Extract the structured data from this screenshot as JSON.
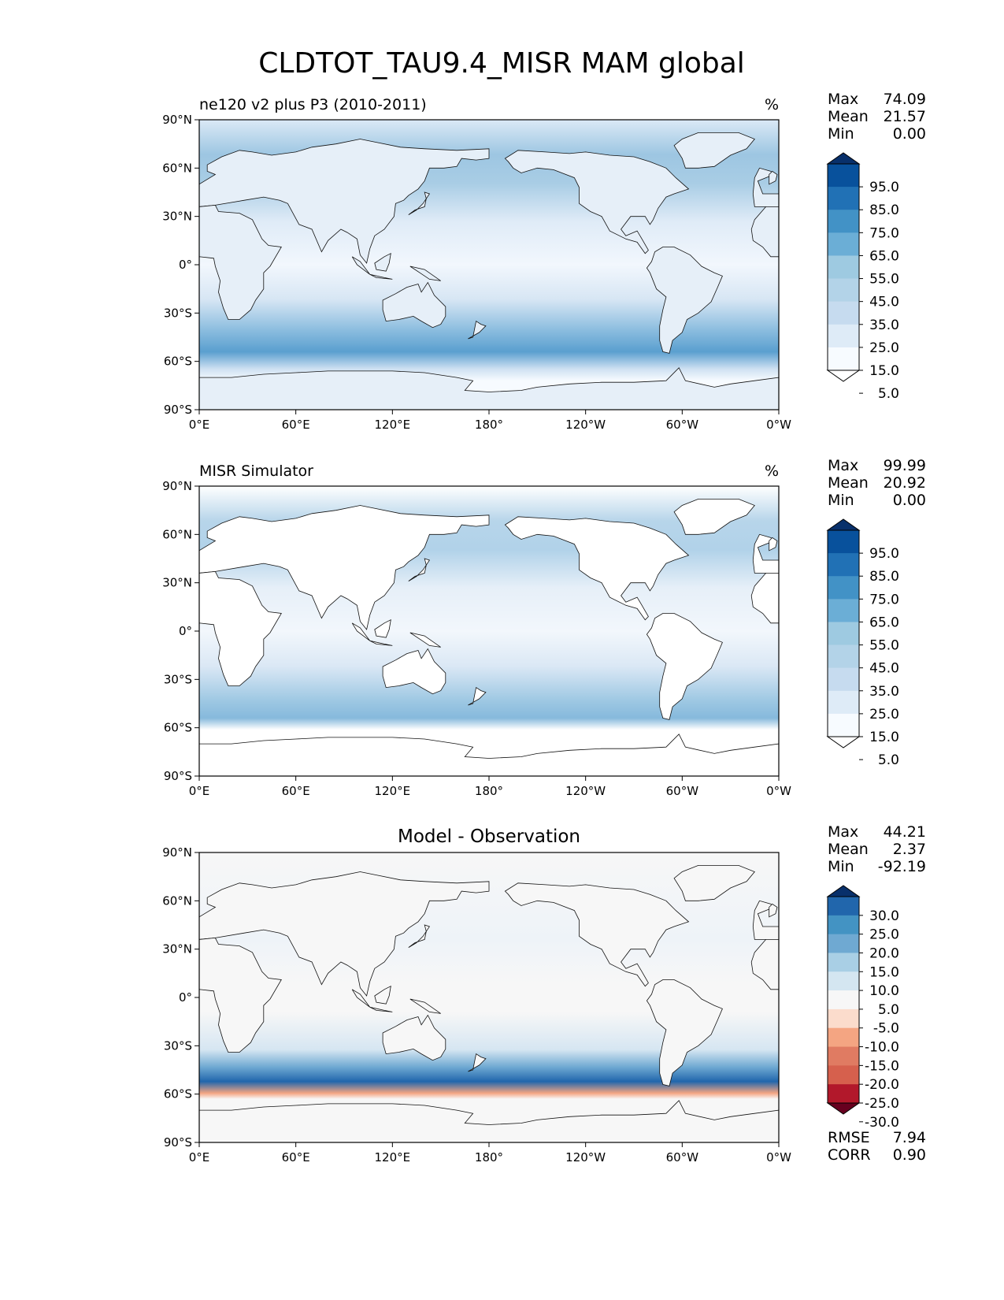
{
  "figure": {
    "title": "CLDTOT_TAU9.4_MISR MAM global"
  },
  "axes": {
    "lat_ticks": [
      "90°N",
      "60°N",
      "30°N",
      "0°",
      "30°S",
      "60°S",
      "90°S"
    ],
    "lon_ticks": [
      "0°E",
      "60°E",
      "120°E",
      "180°",
      "120°W",
      "60°W",
      "0°W"
    ]
  },
  "panels": [
    {
      "id": "test",
      "title_left": "ne120 v2 plus P3 (2010-2011)",
      "title_center": "",
      "units": "%",
      "stats": {
        "max_label": "Max",
        "max": "74.09",
        "mean_label": "Mean",
        "mean": "21.57",
        "min_label": "Min",
        "min": "0.00"
      },
      "colorbar": {
        "labels": [
          "95.0",
          "85.0",
          "75.0",
          "65.0",
          "55.0",
          "45.0",
          "35.0",
          "25.0",
          "15.0",
          "5.0"
        ],
        "colors": [
          "#08306b",
          "#08519c",
          "#2171b5",
          "#4292c6",
          "#6baed6",
          "#9ecae1",
          "#b3d3e8",
          "#c6dbef",
          "#deebf7",
          "#f7fbff",
          "#ffffff"
        ]
      }
    },
    {
      "id": "reference",
      "title_left": "MISR Simulator",
      "title_center": "",
      "units": "%",
      "stats": {
        "max_label": "Max",
        "max": "99.99",
        "mean_label": "Mean",
        "mean": "20.92",
        "min_label": "Min",
        "min": "0.00"
      },
      "colorbar": {
        "labels": [
          "95.0",
          "85.0",
          "75.0",
          "65.0",
          "55.0",
          "45.0",
          "35.0",
          "25.0",
          "15.0",
          "5.0"
        ],
        "colors": [
          "#08306b",
          "#08519c",
          "#2171b5",
          "#4292c6",
          "#6baed6",
          "#9ecae1",
          "#b3d3e8",
          "#c6dbef",
          "#deebf7",
          "#f7fbff",
          "#ffffff"
        ]
      }
    },
    {
      "id": "diff",
      "title_left": "",
      "title_center": "Model - Observation",
      "units": "",
      "stats": {
        "max_label": "Max",
        "max": "44.21",
        "mean_label": "Mean",
        "mean": "2.37",
        "min_label": "Min",
        "min": "-92.19"
      },
      "colorbar": {
        "labels": [
          "30.0",
          "25.0",
          "20.0",
          "15.0",
          "10.0",
          "5.0",
          "-5.0",
          "-10.0",
          "-15.0",
          "-20.0",
          "-25.0",
          "-30.0"
        ],
        "colors": [
          "#08306b",
          "#2166ac",
          "#4393c3",
          "#6fa9d2",
          "#a9cfe5",
          "#d4e6f1",
          "#f7f7f7",
          "#fbdccc",
          "#f4a582",
          "#e07b62",
          "#d6604d",
          "#b2182b",
          "#67001f"
        ]
      },
      "metrics": {
        "rmse_label": "RMSE",
        "rmse": "7.94",
        "corr_label": "CORR",
        "corr": "0.90"
      }
    }
  ]
}
